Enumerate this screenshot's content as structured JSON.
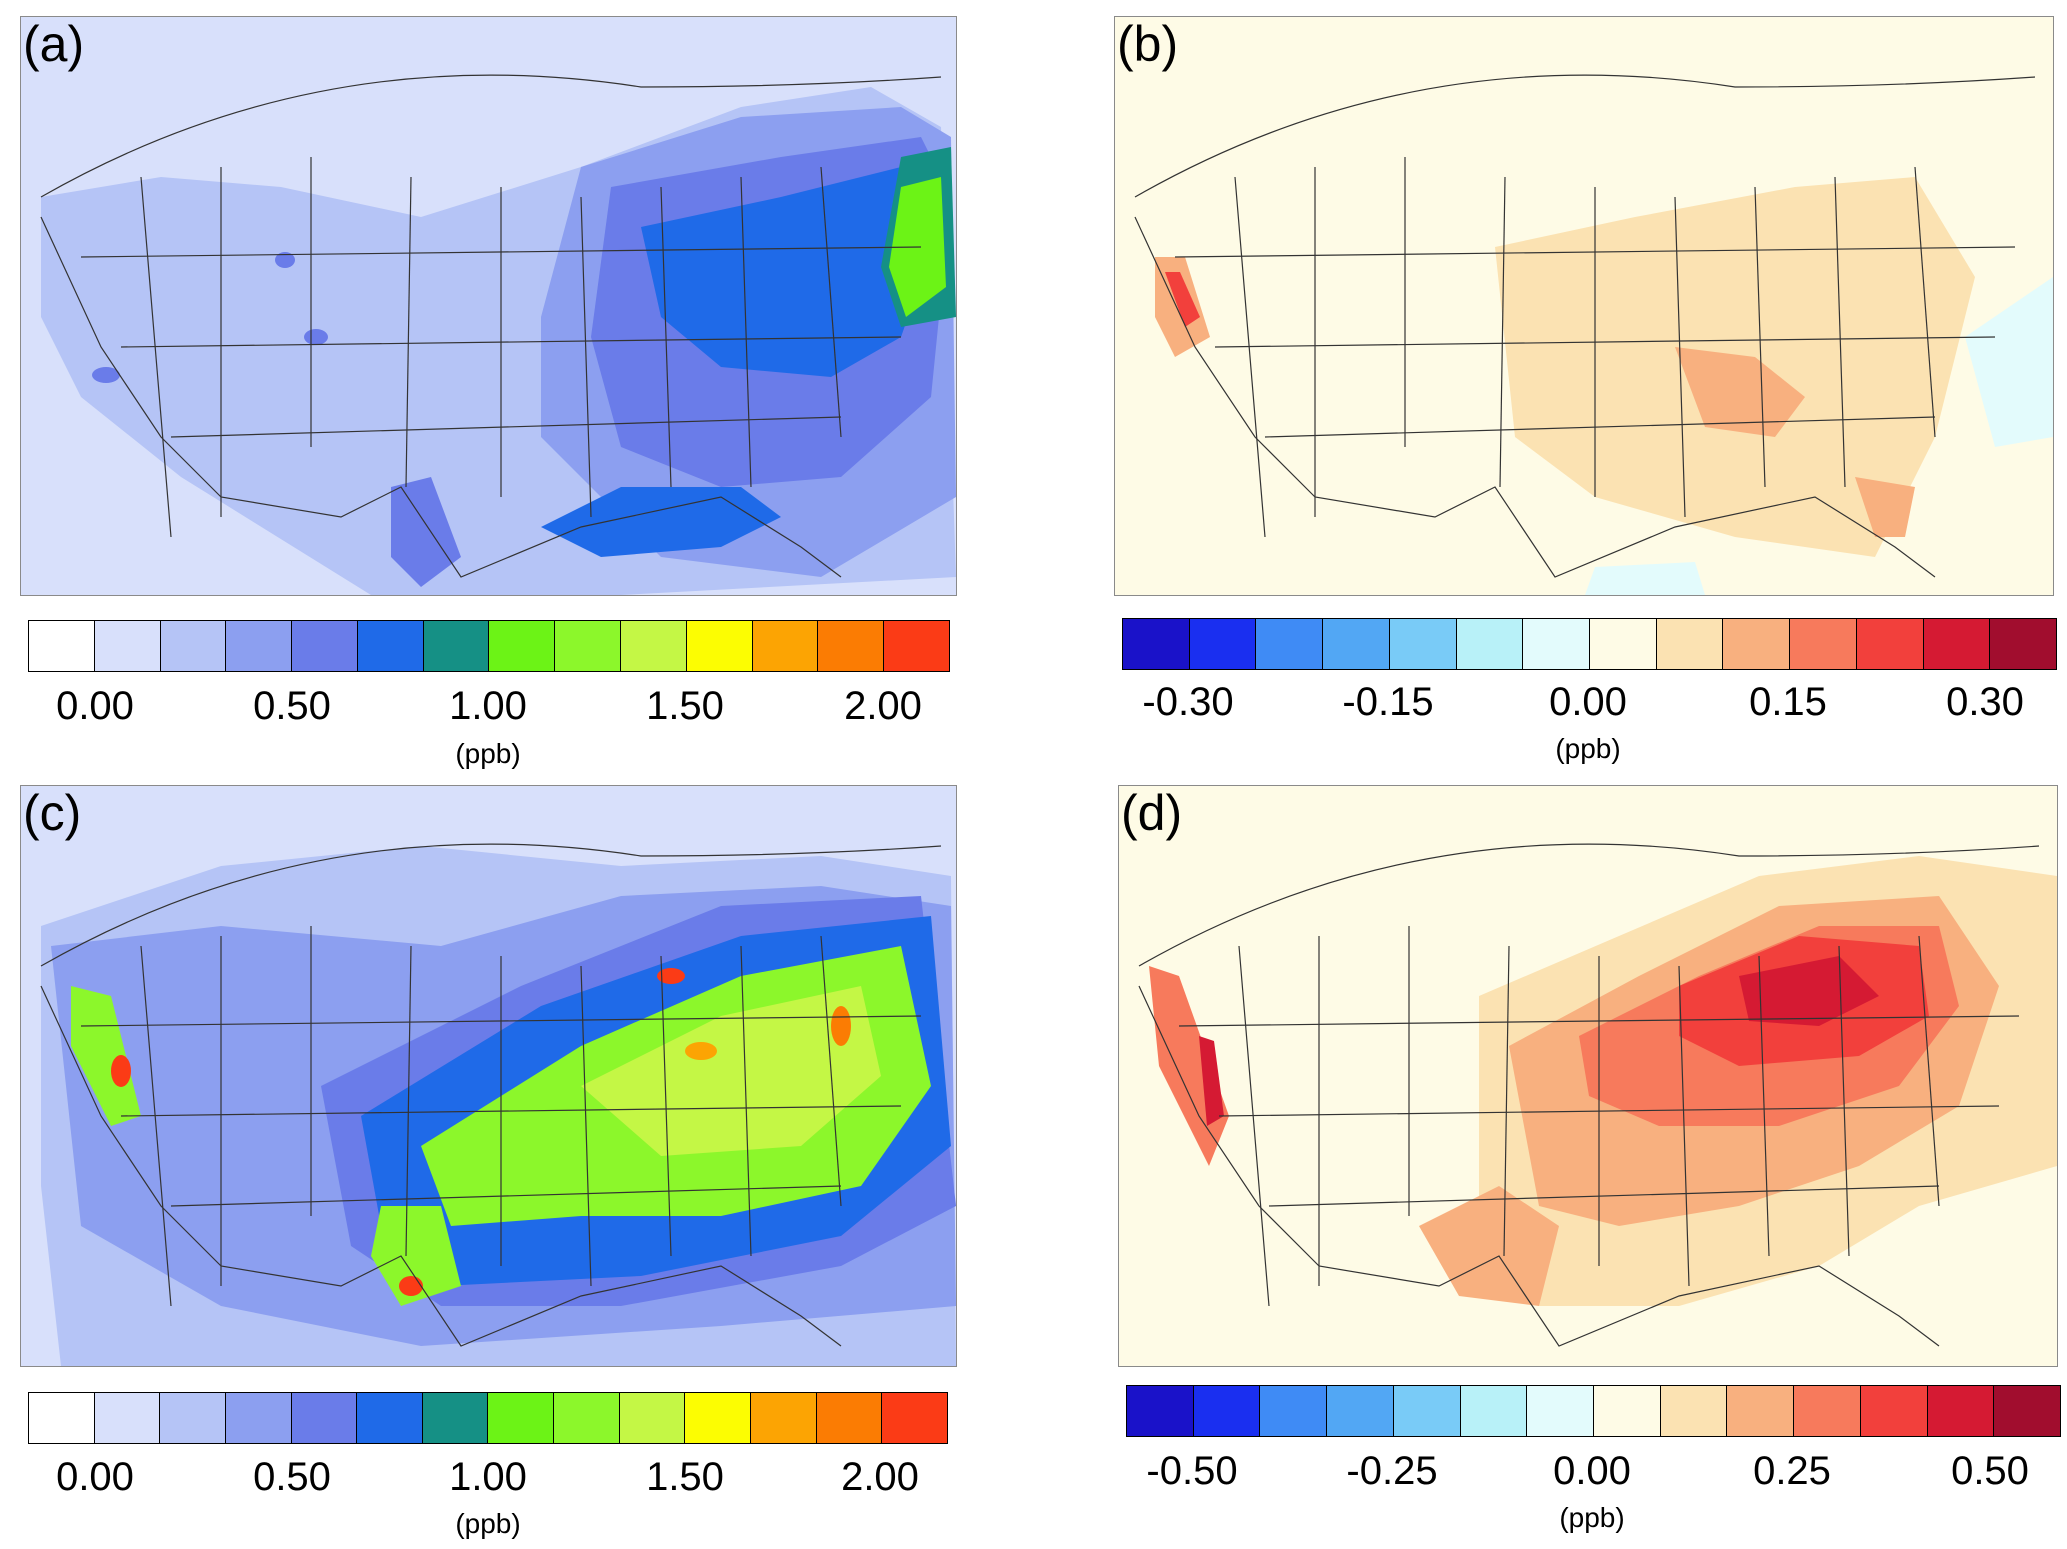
{
  "panels": [
    {
      "id": "a",
      "label": "(a)",
      "unit": "(ppb)",
      "tick_labels": [
        "0.00",
        "0.50",
        "1.00",
        "1.50",
        "2.00"
      ],
      "colors": [
        "#ffffff",
        "#d8e0fb",
        "#b5c4f6",
        "#8c9ff0",
        "#6a7ce9",
        "#1f6ae8",
        "#159085",
        "#6cf316",
        "#8cf72b",
        "#c4f745",
        "#fcfd02",
        "#fca403",
        "#fb7c03",
        "#fb3b16"
      ],
      "background": "#d8e0fb",
      "land": "#d8e0fb"
    },
    {
      "id": "b",
      "label": "(b)",
      "unit": "(ppb)",
      "tick_labels": [
        "-0.30",
        "-0.15",
        "0.00",
        "0.15",
        "0.30"
      ],
      "colors": [
        "#1a12c9",
        "#1a2ff0",
        "#3f8bf5",
        "#52a7f4",
        "#79cbf7",
        "#b8f1f8",
        "#e3fbfc",
        "#fefbe6",
        "#fbe2b2",
        "#f8b07f",
        "#f77a5c",
        "#f2403c",
        "#d51a33",
        "#a10d2e"
      ],
      "background": "#fefbe6",
      "land": "#fefbe6"
    },
    {
      "id": "c",
      "label": "(c)",
      "unit": "(ppb)",
      "tick_labels": [
        "0.00",
        "0.50",
        "1.00",
        "1.50",
        "2.00"
      ],
      "colors": [
        "#ffffff",
        "#d8e0fb",
        "#b5c4f6",
        "#8c9ff0",
        "#6a7ce9",
        "#1f6ae8",
        "#159085",
        "#6cf316",
        "#8cf72b",
        "#c4f745",
        "#fcfd02",
        "#fca403",
        "#fb7c03",
        "#fb3b16"
      ],
      "background": "#d8e0fb",
      "land": "#d8e0fb"
    },
    {
      "id": "d",
      "label": "(d)",
      "unit": "(ppb)",
      "tick_labels": [
        "-0.50",
        "-0.25",
        "0.00",
        "0.25",
        "0.50"
      ],
      "colors": [
        "#1a12c9",
        "#1a2ff0",
        "#3f8bf5",
        "#52a7f4",
        "#79cbf7",
        "#b8f1f8",
        "#e3fbfc",
        "#fefbe6",
        "#fbe2b2",
        "#f8b07f",
        "#f77a5c",
        "#f2403c",
        "#d51a33",
        "#a10d2e"
      ],
      "background": "#fefbe6",
      "land": "#fefbe6"
    }
  ]
}
